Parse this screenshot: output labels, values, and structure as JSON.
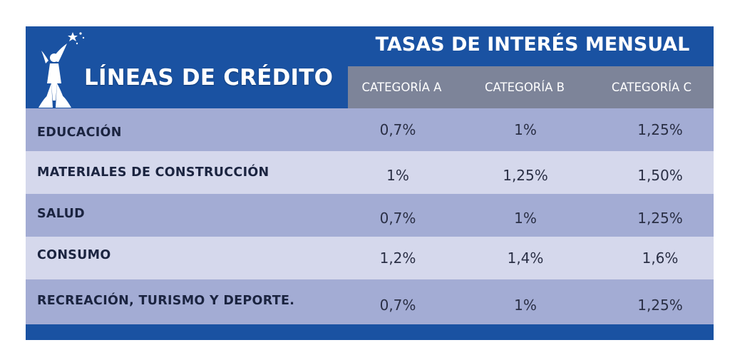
{
  "header": {
    "lineas_title": "LÍNEAS DE CRÉDITO",
    "tasas_title": "TASAS DE INTERÉS MENSUAL",
    "categories": [
      "CATEGORÍA A",
      "CATEGORÍA B",
      "CATEGORÍA C"
    ]
  },
  "rows": [
    {
      "label": "EDUCACIÓN",
      "values": [
        "0,7%",
        "1%",
        "1,25%"
      ]
    },
    {
      "label": "MATERIALES DE CONSTRUCCIÓN",
      "values": [
        "1%",
        "1,25%",
        "1,50%"
      ]
    },
    {
      "label": "SALUD",
      "values": [
        "0,7%",
        "1%",
        "1,25%"
      ]
    },
    {
      "label": "CONSUMO",
      "values": [
        "1,2%",
        "1,4%",
        "1,6%"
      ]
    },
    {
      "label": "RECREACIÓN, TURISMO Y DEPORTE.",
      "values": [
        "0,7%",
        "1%",
        "1,25%"
      ]
    }
  ],
  "colors": {
    "header_blue": "#1a52a2",
    "category_gray": "#7d8499",
    "row_dark": "#a3acd4",
    "row_light": "#d5d8ec"
  },
  "icons": {
    "logo": "figure-with-stars-logo"
  }
}
